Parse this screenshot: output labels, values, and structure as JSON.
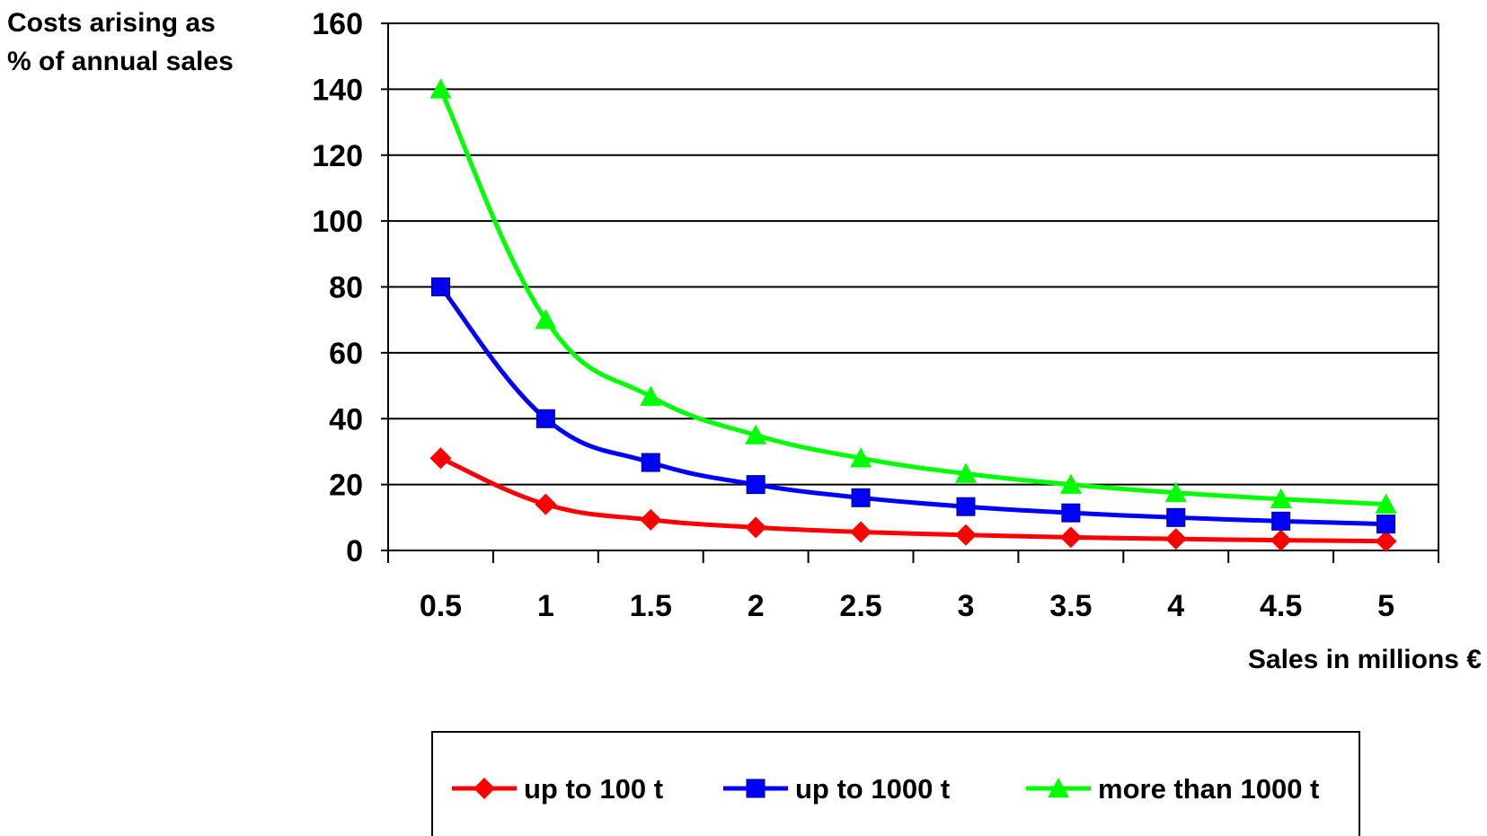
{
  "chart_data": {
    "type": "line",
    "title": "",
    "ylabel_lines": [
      "Costs arising as",
      "% of annual sales"
    ],
    "xlabel": "Sales in millions €",
    "ylim": [
      0,
      160
    ],
    "yticks": [
      0,
      20,
      40,
      60,
      80,
      100,
      120,
      140,
      160
    ],
    "x": [
      0.5,
      1,
      1.5,
      2,
      2.5,
      3,
      3.5,
      4,
      4.5,
      5
    ],
    "xtick_labels": [
      "0.5",
      "1",
      "1.5",
      "2",
      "2.5",
      "3",
      "3.5",
      "4",
      "4.5",
      "5"
    ],
    "grid": "horizontal",
    "legend_position": "bottom",
    "series": [
      {
        "name": "up to 100 t",
        "color": "#ff0000",
        "marker": "diamond",
        "values": [
          28,
          14,
          9.3,
          7,
          5.6,
          4.7,
          4,
          3.5,
          3.1,
          2.8
        ]
      },
      {
        "name": "up to 1000 t",
        "color": "#0000ff",
        "marker": "square",
        "values": [
          80,
          40,
          26.7,
          20,
          16,
          13.3,
          11.4,
          10,
          8.9,
          8
        ]
      },
      {
        "name": "more than 1000 t",
        "color": "#00ff00",
        "marker": "triangle",
        "values": [
          140,
          70,
          46.7,
          35,
          28,
          23.3,
          20,
          17.5,
          15.6,
          14
        ]
      }
    ]
  }
}
